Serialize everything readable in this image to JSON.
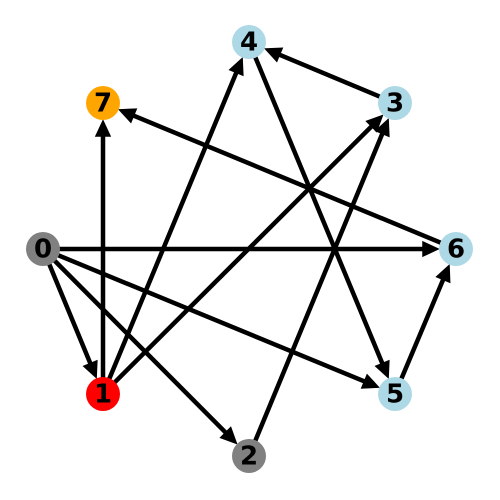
{
  "graph": {
    "type": "directed",
    "nodes": [
      {
        "id": "0",
        "label": "0",
        "color": "#808080"
      },
      {
        "id": "1",
        "label": "1",
        "color": "#ff0000"
      },
      {
        "id": "2",
        "label": "2",
        "color": "#808080"
      },
      {
        "id": "3",
        "label": "3",
        "color": "#add8e6"
      },
      {
        "id": "4",
        "label": "4",
        "color": "#add8e6"
      },
      {
        "id": "5",
        "label": "5",
        "color": "#add8e6"
      },
      {
        "id": "6",
        "label": "6",
        "color": "#add8e6"
      },
      {
        "id": "7",
        "label": "7",
        "color": "#ffa500"
      }
    ],
    "edges": [
      {
        "from": "0",
        "to": "1"
      },
      {
        "from": "0",
        "to": "2"
      },
      {
        "from": "0",
        "to": "5"
      },
      {
        "from": "0",
        "to": "6"
      },
      {
        "from": "1",
        "to": "3"
      },
      {
        "from": "1",
        "to": "4"
      },
      {
        "from": "1",
        "to": "7"
      },
      {
        "from": "2",
        "to": "3"
      },
      {
        "from": "3",
        "to": "4"
      },
      {
        "from": "4",
        "to": "5"
      },
      {
        "from": "5",
        "to": "6"
      },
      {
        "from": "6",
        "to": "7"
      }
    ],
    "edge_color": "#000000"
  }
}
